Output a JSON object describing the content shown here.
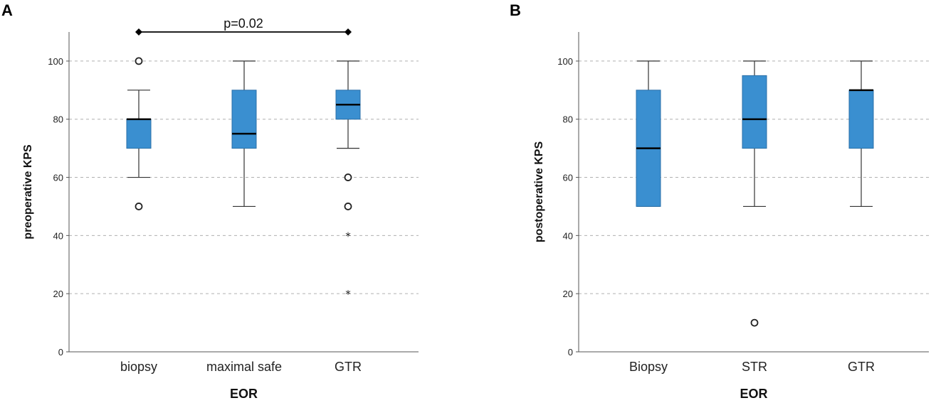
{
  "chart_data": [
    {
      "panel": "A",
      "type": "box",
      "xlabel": "EOR",
      "ylabel": "preoperative KPS",
      "ylim": [
        0,
        110
      ],
      "yticks": [
        0,
        20,
        40,
        60,
        80,
        100
      ],
      "grid": true,
      "box_color": "#3a8fd0",
      "categories": [
        "biopsy",
        "maximal safe",
        "GTR"
      ],
      "boxes": [
        {
          "category": "biopsy",
          "whisker_low": 60,
          "q1": 70,
          "median": 80,
          "q3": 80,
          "whisker_high": 90,
          "outliers": [
            {
              "value": 100,
              "marker": "circle"
            },
            {
              "value": 50,
              "marker": "circle"
            }
          ]
        },
        {
          "category": "maximal safe",
          "whisker_low": 50,
          "q1": 70,
          "median": 75,
          "q3": 90,
          "whisker_high": 100,
          "outliers": []
        },
        {
          "category": "GTR",
          "whisker_low": 70,
          "q1": 80,
          "median": 85,
          "q3": 90,
          "whisker_high": 100,
          "outliers": [
            {
              "value": 60,
              "marker": "circle"
            },
            {
              "value": 50,
              "marker": "circle"
            },
            {
              "value": 40,
              "marker": "star"
            },
            {
              "value": 20,
              "marker": "star"
            }
          ]
        }
      ],
      "annotation": {
        "text": "p=0.02",
        "from": "biopsy",
        "to": "GTR",
        "value": 110
      }
    },
    {
      "panel": "B",
      "type": "box",
      "xlabel": "EOR",
      "ylabel": "postoperative KPS",
      "ylim": [
        0,
        110
      ],
      "yticks": [
        0,
        20,
        40,
        60,
        80,
        100
      ],
      "grid": true,
      "box_color": "#3a8fd0",
      "categories": [
        "Biopsy",
        "STR",
        "GTR"
      ],
      "boxes": [
        {
          "category": "Biopsy",
          "whisker_low": 50,
          "q1": 50,
          "median": 70,
          "q3": 90,
          "whisker_high": 100,
          "outliers": []
        },
        {
          "category": "STR",
          "whisker_low": 50,
          "q1": 70,
          "median": 80,
          "q3": 95,
          "whisker_high": 100,
          "outliers": [
            {
              "value": 10,
              "marker": "circle"
            }
          ]
        },
        {
          "category": "GTR",
          "whisker_low": 50,
          "q1": 70,
          "median": 90,
          "q3": 90,
          "whisker_high": 100,
          "outliers": []
        }
      ]
    }
  ]
}
